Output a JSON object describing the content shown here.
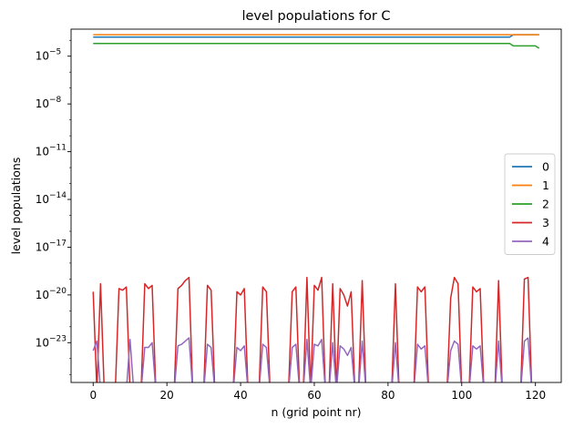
{
  "chart_data": {
    "type": "line",
    "title": "level populations for C",
    "xlabel": "n (grid point nr)",
    "ylabel": "level populations",
    "xlim": [
      -6,
      127
    ],
    "xticks": [
      0,
      20,
      40,
      60,
      80,
      100,
      120
    ],
    "ylim_log10": [
      -25.5,
      -3.3
    ],
    "yscale": "log",
    "yticks_log10": [
      -23,
      -20,
      -17,
      -14,
      -11,
      -8,
      -5
    ],
    "ytick_labels": [
      "10",
      "10",
      "10",
      "10",
      "10",
      "10",
      "10"
    ],
    "ytick_exponents": [
      "−23",
      "−20",
      "−17",
      "−14",
      "−11",
      "−8",
      "−5"
    ],
    "legend_position": "center-right",
    "grid": false,
    "series": [
      {
        "name": "0",
        "color": "#1f77b4",
        "log10_values": [
          -3.8,
          -3.8,
          -3.8,
          -3.8,
          -3.8,
          -3.8,
          -3.8,
          -3.8,
          -3.8,
          -3.8,
          -3.8,
          -3.8,
          -3.8,
          -3.8,
          -3.8,
          -3.8,
          -3.8,
          -3.8,
          -3.8,
          -3.8,
          -3.8,
          -3.8,
          -3.8,
          -3.8,
          -3.8,
          -3.8,
          -3.8,
          -3.8,
          -3.8,
          -3.8,
          -3.8,
          -3.8,
          -3.8,
          -3.8,
          -3.8,
          -3.8,
          -3.8,
          -3.8,
          -3.8,
          -3.8,
          -3.8,
          -3.8,
          -3.8,
          -3.8,
          -3.8,
          -3.8,
          -3.8,
          -3.8,
          -3.8,
          -3.8,
          -3.8,
          -3.8,
          -3.8,
          -3.8,
          -3.8,
          -3.8,
          -3.8,
          -3.8,
          -3.8,
          -3.8,
          -3.8,
          -3.8,
          -3.8,
          -3.8,
          -3.8,
          -3.8,
          -3.8,
          -3.8,
          -3.8,
          -3.8,
          -3.8,
          -3.8,
          -3.8,
          -3.8,
          -3.8,
          -3.8,
          -3.8,
          -3.8,
          -3.8,
          -3.8,
          -3.8,
          -3.8,
          -3.8,
          -3.8,
          -3.8,
          -3.8,
          -3.8,
          -3.8,
          -3.8,
          -3.8,
          -3.8,
          -3.8,
          -3.8,
          -3.8,
          -3.8,
          -3.8,
          -3.8,
          -3.8,
          -3.8,
          -3.8,
          -3.8,
          -3.8,
          -3.8,
          -3.8,
          -3.8,
          -3.8,
          -3.8,
          -3.8,
          -3.8,
          -3.8,
          -3.8,
          -3.8,
          -3.8,
          -3.8,
          -3.65,
          -3.65,
          -3.65,
          -3.65,
          -3.65,
          -3.65,
          -3.65,
          -3.65
        ]
      },
      {
        "name": "1",
        "color": "#ff7f0e",
        "log10_values": [
          -3.65,
          -3.65,
          -3.65,
          -3.65,
          -3.65,
          -3.65,
          -3.65,
          -3.65,
          -3.65,
          -3.65,
          -3.65,
          -3.65,
          -3.65,
          -3.65,
          -3.65,
          -3.65,
          -3.65,
          -3.65,
          -3.65,
          -3.65,
          -3.65,
          -3.65,
          -3.65,
          -3.65,
          -3.65,
          -3.65,
          -3.65,
          -3.65,
          -3.65,
          -3.65,
          -3.65,
          -3.65,
          -3.65,
          -3.65,
          -3.65,
          -3.65,
          -3.65,
          -3.65,
          -3.65,
          -3.65,
          -3.65,
          -3.65,
          -3.65,
          -3.65,
          -3.65,
          -3.65,
          -3.65,
          -3.65,
          -3.65,
          -3.65,
          -3.65,
          -3.65,
          -3.65,
          -3.65,
          -3.65,
          -3.65,
          -3.65,
          -3.65,
          -3.65,
          -3.65,
          -3.65,
          -3.65,
          -3.65,
          -3.65,
          -3.65,
          -3.65,
          -3.65,
          -3.65,
          -3.65,
          -3.65,
          -3.65,
          -3.65,
          -3.65,
          -3.65,
          -3.65,
          -3.65,
          -3.65,
          -3.65,
          -3.65,
          -3.65,
          -3.65,
          -3.65,
          -3.65,
          -3.65,
          -3.65,
          -3.65,
          -3.65,
          -3.65,
          -3.65,
          -3.65,
          -3.65,
          -3.65,
          -3.65,
          -3.65,
          -3.65,
          -3.65,
          -3.65,
          -3.65,
          -3.65,
          -3.65,
          -3.65,
          -3.65,
          -3.65,
          -3.65,
          -3.65,
          -3.65,
          -3.65,
          -3.65,
          -3.65,
          -3.65,
          -3.65,
          -3.65,
          -3.65,
          -3.65,
          -3.65,
          -3.65,
          -3.65,
          -3.65,
          -3.65,
          -3.65,
          -3.65,
          -3.65
        ]
      },
      {
        "name": "2",
        "color": "#2ca02c",
        "log10_values": [
          -4.2,
          -4.2,
          -4.2,
          -4.2,
          -4.2,
          -4.2,
          -4.2,
          -4.2,
          -4.2,
          -4.2,
          -4.2,
          -4.2,
          -4.2,
          -4.2,
          -4.2,
          -4.2,
          -4.2,
          -4.2,
          -4.2,
          -4.2,
          -4.2,
          -4.2,
          -4.2,
          -4.2,
          -4.2,
          -4.2,
          -4.2,
          -4.2,
          -4.2,
          -4.2,
          -4.2,
          -4.2,
          -4.2,
          -4.2,
          -4.2,
          -4.2,
          -4.2,
          -4.2,
          -4.2,
          -4.2,
          -4.2,
          -4.2,
          -4.2,
          -4.2,
          -4.2,
          -4.2,
          -4.2,
          -4.2,
          -4.2,
          -4.2,
          -4.2,
          -4.2,
          -4.2,
          -4.2,
          -4.2,
          -4.2,
          -4.2,
          -4.2,
          -4.2,
          -4.2,
          -4.2,
          -4.2,
          -4.2,
          -4.2,
          -4.2,
          -4.2,
          -4.2,
          -4.2,
          -4.2,
          -4.2,
          -4.2,
          -4.2,
          -4.2,
          -4.2,
          -4.2,
          -4.2,
          -4.2,
          -4.2,
          -4.2,
          -4.2,
          -4.2,
          -4.2,
          -4.2,
          -4.2,
          -4.2,
          -4.2,
          -4.2,
          -4.2,
          -4.2,
          -4.2,
          -4.2,
          -4.2,
          -4.2,
          -4.2,
          -4.2,
          -4.2,
          -4.2,
          -4.2,
          -4.2,
          -4.2,
          -4.2,
          -4.2,
          -4.2,
          -4.2,
          -4.2,
          -4.2,
          -4.2,
          -4.2,
          -4.2,
          -4.2,
          -4.2,
          -4.2,
          -4.2,
          -4.2,
          -4.35,
          -4.35,
          -4.35,
          -4.35,
          -4.35,
          -4.35,
          -4.35,
          -4.5
        ]
      },
      {
        "name": "3",
        "color": "#d62728",
        "log10_values": [
          -19.8,
          -26,
          -19.3,
          -26,
          -26,
          -26,
          -26,
          -19.6,
          -19.7,
          -19.5,
          -26,
          -26,
          -26,
          -26,
          -19.3,
          -19.6,
          -19.4,
          -26,
          -26,
          -26,
          -26,
          -26,
          -26,
          -19.6,
          -19.4,
          -19.1,
          -18.9,
          -26,
          -26,
          -26,
          -26,
          -19.4,
          -19.7,
          -26,
          -26,
          -26,
          -26,
          -26,
          -26,
          -19.8,
          -20.0,
          -19.6,
          -26,
          -26,
          -26,
          -26,
          -19.5,
          -19.8,
          -26,
          -26,
          -26,
          -26,
          -26,
          -26,
          -19.8,
          -19.5,
          -26,
          -26,
          -18.9,
          -26,
          -19.4,
          -19.7,
          -18.9,
          -26,
          -26,
          -19.3,
          -26,
          -19.6,
          -20.0,
          -20.7,
          -19.8,
          -26,
          -26,
          -19.1,
          -26,
          -26,
          -26,
          -26,
          -26,
          -26,
          -26,
          -26,
          -19.3,
          -26,
          -26,
          -26,
          -26,
          -26,
          -19.5,
          -19.8,
          -19.5,
          -26,
          -26,
          -26,
          -26,
          -26,
          -26,
          -20.2,
          -18.9,
          -19.3,
          -26,
          -26,
          -26,
          -19.5,
          -19.8,
          -19.6,
          -26,
          -26,
          -26,
          -26,
          -19.1,
          -26,
          -26,
          -26,
          -26,
          -26,
          -26,
          -19.0,
          -18.9,
          -26,
          -26
        ]
      },
      {
        "name": "4",
        "color": "#9467bd",
        "log10_values": [
          -23.5,
          -22.9,
          -26,
          -26,
          -26,
          -26,
          -26,
          -26,
          -26,
          -26,
          -22.8,
          -26,
          -26,
          -26,
          -23.3,
          -23.3,
          -23.0,
          -26,
          -26,
          -26,
          -26,
          -26,
          -26,
          -23.2,
          -23.1,
          -22.9,
          -22.7,
          -26,
          -26,
          -26,
          -26,
          -23.1,
          -23.3,
          -26,
          -26,
          -26,
          -26,
          -26,
          -26,
          -23.3,
          -23.5,
          -23.2,
          -26,
          -26,
          -26,
          -26,
          -23.1,
          -23.3,
          -26,
          -26,
          -26,
          -26,
          -26,
          -26,
          -23.3,
          -23.1,
          -26,
          -26,
          -22.8,
          -26,
          -23.1,
          -23.2,
          -22.8,
          -26,
          -26,
          -23.0,
          -26,
          -23.2,
          -23.4,
          -23.8,
          -23.3,
          -26,
          -26,
          -22.9,
          -26,
          -26,
          -26,
          -26,
          -26,
          -26,
          -26,
          -26,
          -23.0,
          -26,
          -26,
          -26,
          -26,
          -26,
          -23.1,
          -23.4,
          -23.2,
          -26,
          -26,
          -26,
          -26,
          -26,
          -26,
          -23.5,
          -22.9,
          -23.1,
          -26,
          -26,
          -26,
          -23.2,
          -23.4,
          -23.2,
          -26,
          -26,
          -26,
          -26,
          -22.9,
          -26,
          -26,
          -26,
          -26,
          -26,
          -26,
          -22.9,
          -22.7,
          -26,
          -26
        ]
      }
    ]
  }
}
